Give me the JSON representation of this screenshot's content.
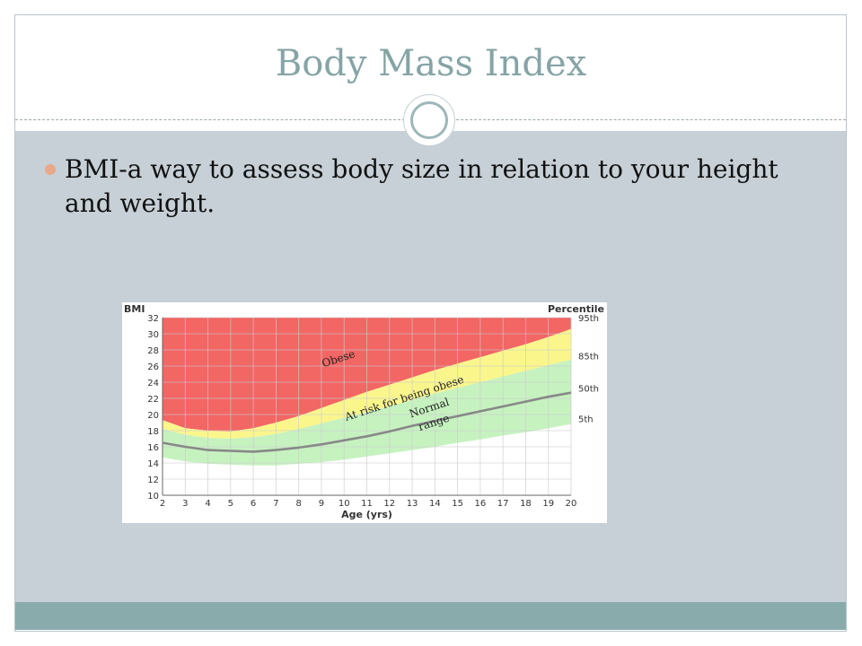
{
  "slide": {
    "title": "Body Mass Index",
    "bullets": [
      "BMI-a way to assess body size in relation to your height and weight."
    ]
  },
  "colors": {
    "title": "#86a4a6",
    "content_bg": "#c6d0d6",
    "footer_band": "#8aabab",
    "bullet_dot": "#e9a88a",
    "obese": "#f26664",
    "at_risk": "#faf68c",
    "normal": "#c6f2c0",
    "median_line": "#888888"
  },
  "chart_data": {
    "type": "area",
    "ylabel": "BMI",
    "xlabel": "Age (yrs)",
    "right_label": "Percentile",
    "xlim": [
      2,
      20
    ],
    "ylim": [
      10,
      32
    ],
    "x_ticks": [
      2,
      3,
      4,
      5,
      6,
      7,
      8,
      9,
      10,
      11,
      12,
      13,
      14,
      15,
      16,
      17,
      18,
      19,
      20
    ],
    "y_ticks": [
      10,
      12,
      14,
      16,
      18,
      20,
      22,
      24,
      26,
      28,
      30,
      32
    ],
    "percentile_labels": [
      {
        "text": "95th",
        "y": 32
      },
      {
        "text": "85th",
        "y": 27.3
      },
      {
        "text": "50th",
        "y": 23.3
      },
      {
        "text": "5th",
        "y": 19.5
      }
    ],
    "zone_labels": [
      {
        "text": "Obese",
        "x": 9.8,
        "y": 26.5
      },
      {
        "text": "At risk for being obese",
        "x": 12.7,
        "y": 21.6
      },
      {
        "text": "Normal",
        "x": 13.8,
        "y": 20.4
      },
      {
        "text": "range",
        "x": 14,
        "y": 18.6
      }
    ],
    "series": [
      {
        "name": "95th",
        "x": [
          2,
          3,
          4,
          5,
          6,
          7,
          8,
          9,
          10,
          11,
          12,
          13,
          14,
          15,
          16,
          17,
          18,
          19,
          20
        ],
        "values": [
          19.3,
          18.3,
          18.0,
          17.9,
          18.3,
          19.0,
          19.8,
          20.8,
          21.8,
          22.8,
          23.7,
          24.6,
          25.5,
          26.3,
          27.1,
          27.9,
          28.7,
          29.6,
          30.6
        ]
      },
      {
        "name": "85th",
        "x": [
          2,
          3,
          4,
          5,
          6,
          7,
          8,
          9,
          10,
          11,
          12,
          13,
          14,
          15,
          16,
          17,
          18,
          19,
          20
        ],
        "values": [
          18.2,
          17.5,
          17.1,
          17.0,
          17.2,
          17.6,
          18.2,
          18.9,
          19.6,
          20.3,
          21.0,
          21.8,
          22.6,
          23.3,
          24.0,
          24.7,
          25.4,
          26.1,
          26.8
        ]
      },
      {
        "name": "50th",
        "x": [
          2,
          3,
          4,
          5,
          6,
          7,
          8,
          9,
          10,
          11,
          12,
          13,
          14,
          15,
          16,
          17,
          18,
          19,
          20
        ],
        "values": [
          16.5,
          16.0,
          15.6,
          15.5,
          15.4,
          15.6,
          15.9,
          16.3,
          16.8,
          17.3,
          17.9,
          18.6,
          19.2,
          19.8,
          20.4,
          21.0,
          21.6,
          22.2,
          22.7
        ]
      },
      {
        "name": "5th",
        "x": [
          2,
          3,
          4,
          5,
          6,
          7,
          8,
          9,
          10,
          11,
          12,
          13,
          14,
          15,
          16,
          17,
          18,
          19,
          20
        ],
        "values": [
          14.7,
          14.2,
          13.9,
          13.8,
          13.7,
          13.7,
          13.9,
          14.1,
          14.4,
          14.8,
          15.2,
          15.6,
          16.0,
          16.5,
          16.9,
          17.4,
          17.8,
          18.3,
          18.8
        ]
      }
    ],
    "grid": true
  }
}
